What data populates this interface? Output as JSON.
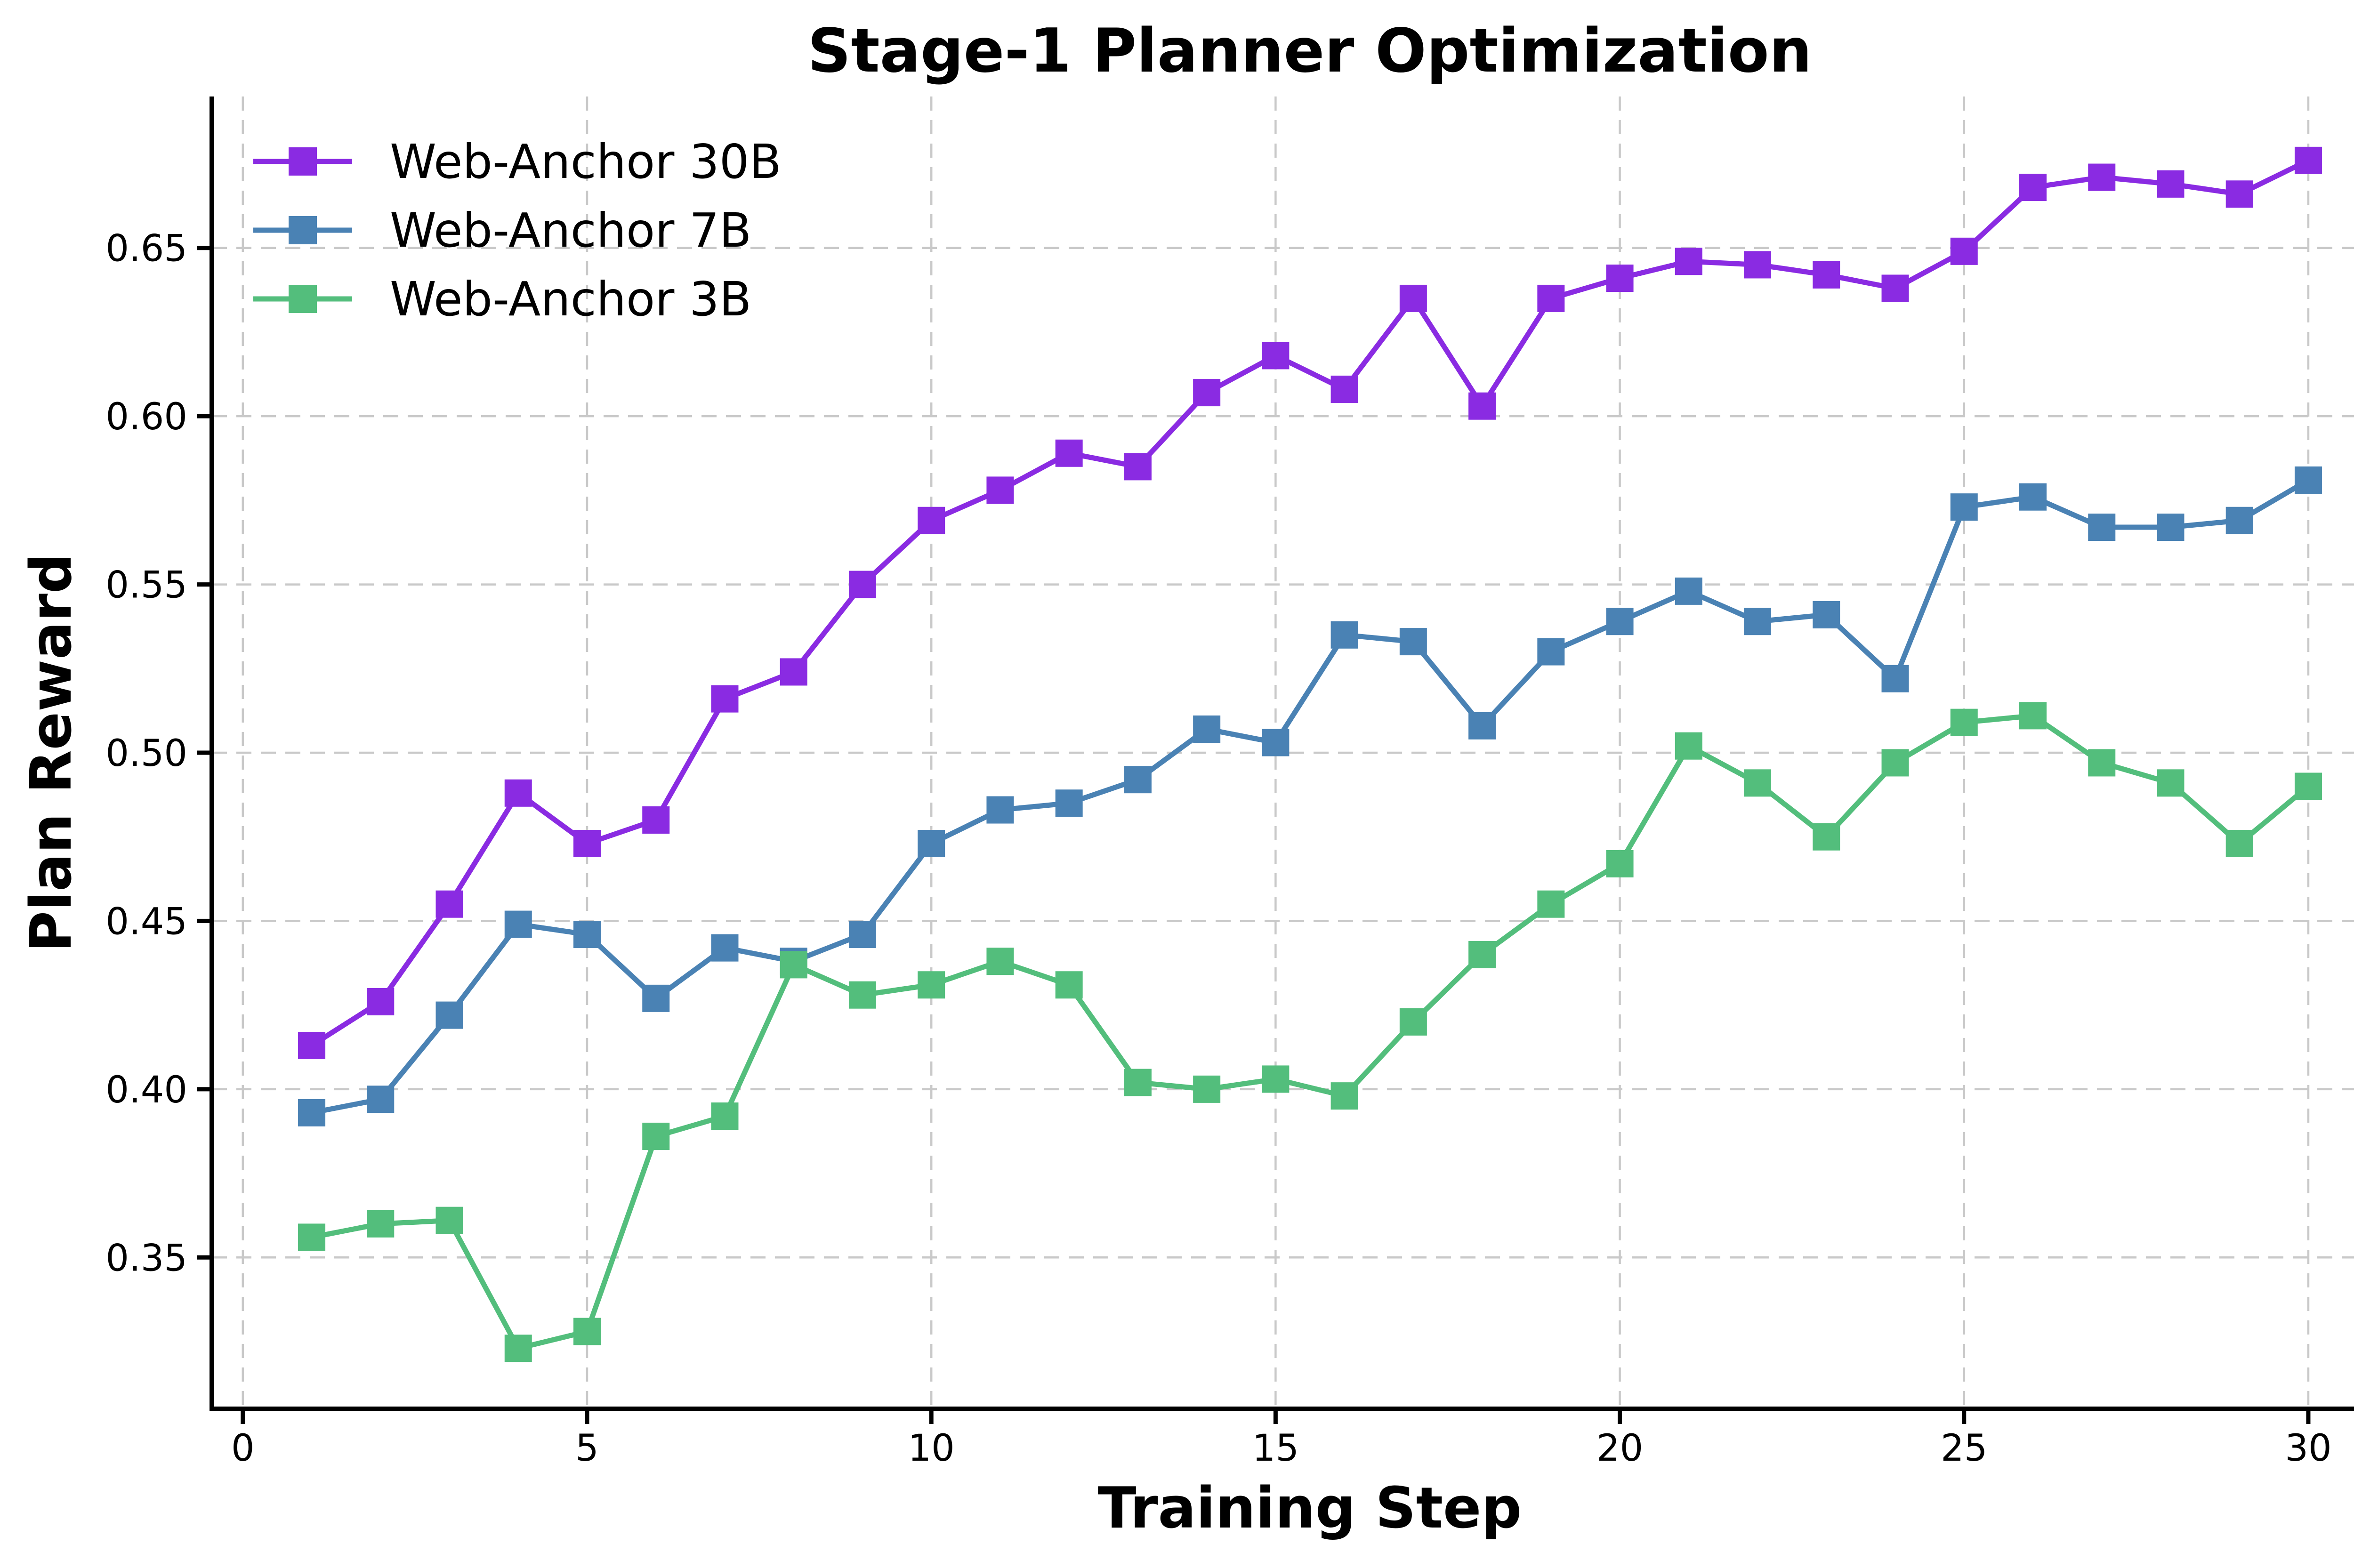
{
  "chart_data": {
    "type": "line",
    "title": "Stage-1 Planner Optimization",
    "xlabel": "Training Step",
    "ylabel": "Plan Reward",
    "marker": "square",
    "grid": true,
    "legend_position": "upper left",
    "xlim": [
      -0.45,
      31.45
    ],
    "ylim": [
      0.305,
      0.695
    ],
    "xticks": [
      0,
      5,
      10,
      15,
      20,
      25,
      30
    ],
    "yticks": [
      0.35,
      0.4,
      0.45,
      0.5,
      0.55,
      0.6,
      0.65
    ],
    "x": [
      1,
      2,
      3,
      4,
      5,
      6,
      7,
      8,
      9,
      10,
      11,
      12,
      13,
      14,
      15,
      16,
      17,
      18,
      19,
      20,
      21,
      22,
      23,
      24,
      25,
      26,
      27,
      28,
      29,
      30
    ],
    "series": [
      {
        "name": "Web-Anchor 30B",
        "color": "#8A2BE2",
        "values": [
          0.413,
          0.426,
          0.455,
          0.488,
          0.473,
          0.48,
          0.516,
          0.524,
          0.55,
          0.569,
          0.578,
          0.589,
          0.585,
          0.607,
          0.618,
          0.608,
          0.635,
          0.603,
          0.635,
          0.641,
          0.646,
          0.645,
          0.642,
          0.638,
          0.649,
          0.668,
          0.671,
          0.669,
          0.666,
          0.676
        ]
      },
      {
        "name": "Web-Anchor 7B",
        "color": "#4A82B4",
        "values": [
          0.393,
          0.397,
          0.422,
          0.449,
          0.446,
          0.427,
          0.442,
          0.438,
          0.446,
          0.473,
          0.483,
          0.485,
          0.492,
          0.507,
          0.503,
          0.535,
          0.533,
          0.508,
          0.53,
          0.539,
          0.548,
          0.539,
          0.541,
          0.522,
          0.573,
          0.576,
          0.567,
          0.567,
          0.569,
          0.581
        ]
      },
      {
        "name": "Web-Anchor 3B",
        "color": "#53BE7C",
        "values": [
          0.356,
          0.36,
          0.361,
          0.323,
          0.328,
          0.386,
          0.392,
          0.437,
          0.428,
          0.431,
          0.438,
          0.431,
          0.402,
          0.4,
          0.403,
          0.398,
          0.42,
          0.44,
          0.455,
          0.467,
          0.502,
          0.491,
          0.475,
          0.497,
          0.509,
          0.511,
          0.497,
          0.491,
          0.473,
          0.49
        ]
      }
    ],
    "grid_color": "#c9c9c9",
    "spine_color": "#000000",
    "background_color": "#ffffff"
  }
}
